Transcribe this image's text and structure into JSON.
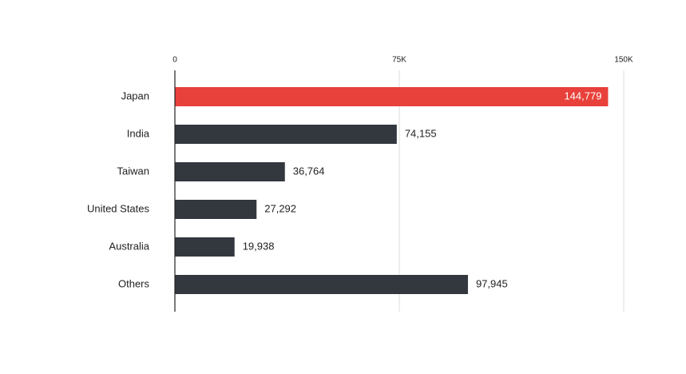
{
  "chart_data": {
    "type": "bar",
    "orientation": "horizontal",
    "categories": [
      "Japan",
      "India",
      "Taiwan",
      "United States",
      "Australia",
      "Others"
    ],
    "values": [
      144779,
      74155,
      36764,
      27292,
      19938,
      97945
    ],
    "value_labels": [
      "144,779",
      "74,155",
      "36,764",
      "27,292",
      "19,938",
      "97,945"
    ],
    "colors": [
      "#e8403a",
      "#33383f",
      "#33383f",
      "#33383f",
      "#33383f",
      "#33383f"
    ],
    "xlim": [
      0,
      150000
    ],
    "xticks": [
      0,
      {
        "value": 75000,
        "label": "75K"
      },
      {
        "value": 150000,
        "label": "150K"
      }
    ],
    "grid": true
  }
}
